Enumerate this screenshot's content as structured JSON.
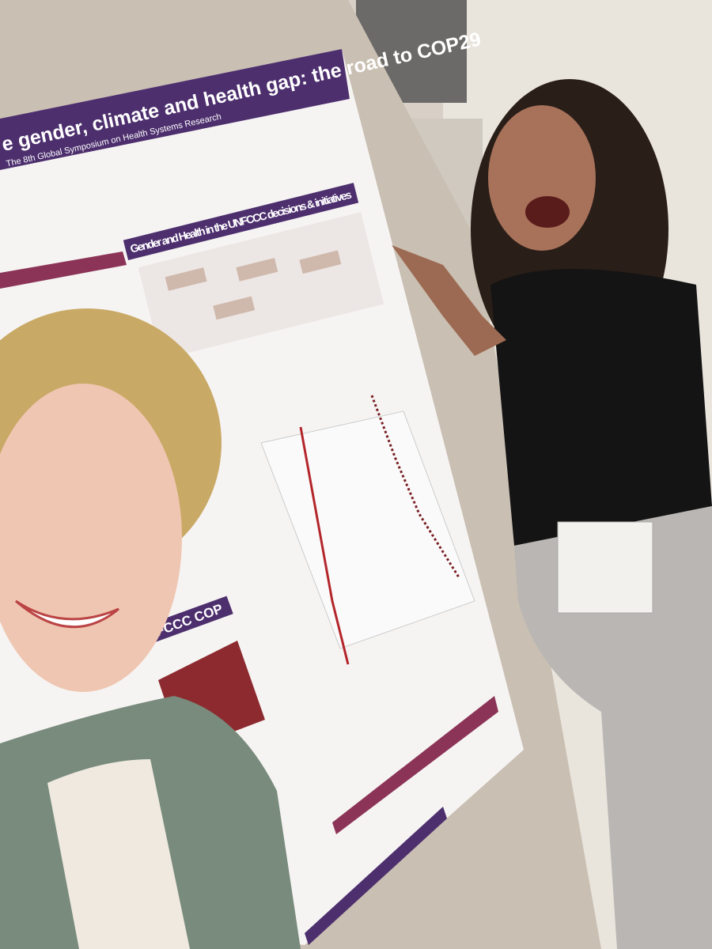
{
  "poster": {
    "title": "e gender, climate and health gap: the road to COP29",
    "subtitle": "The 8th Global Symposium on Health Systems Research",
    "section_heading": "Gender and Health in the UNFCCC decisions & initiatives",
    "side_heading": "UNFCCC COP"
  }
}
